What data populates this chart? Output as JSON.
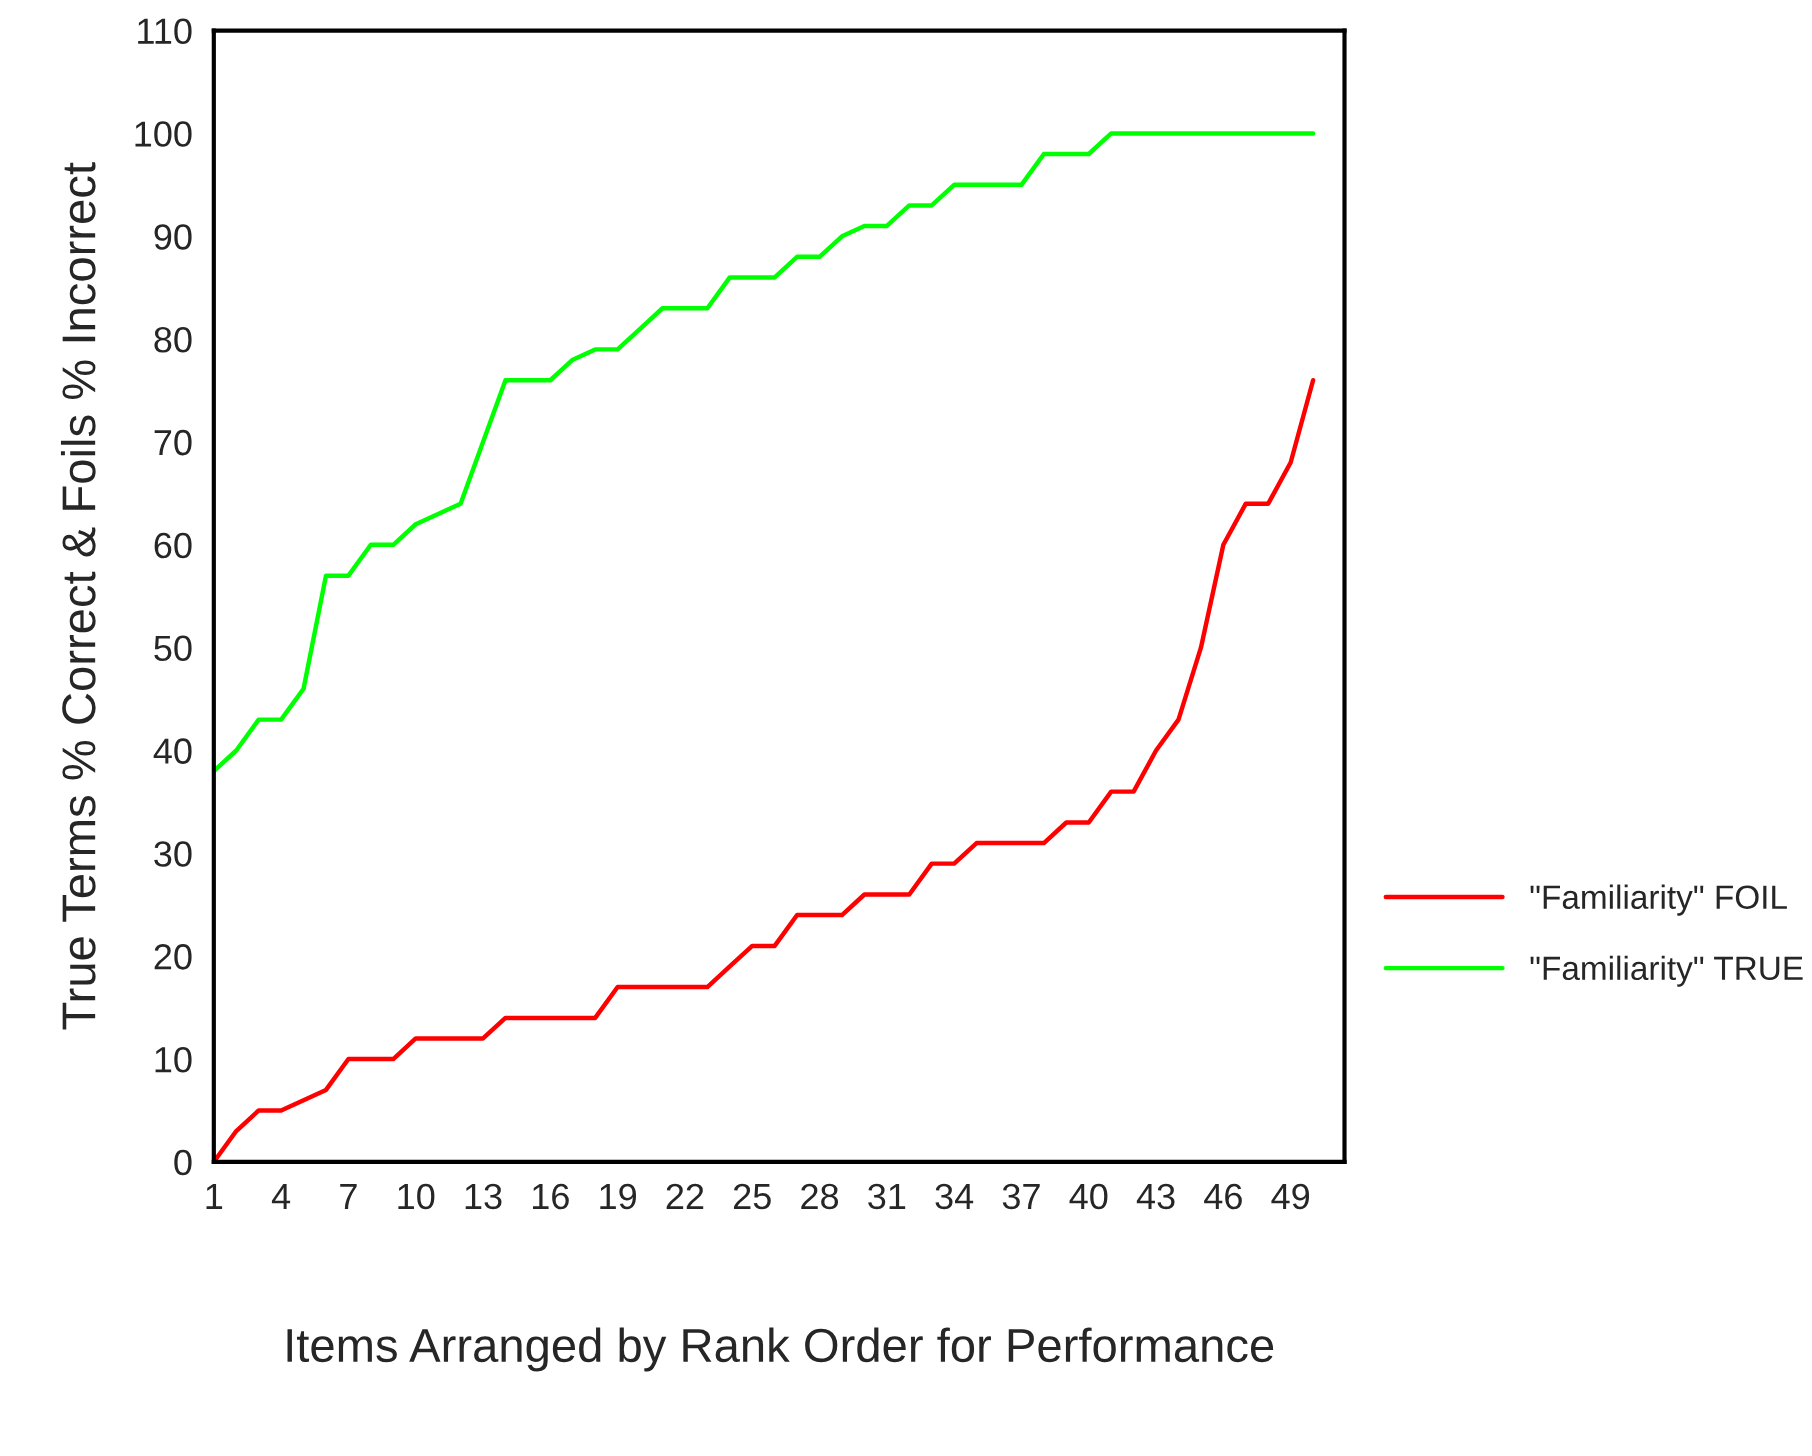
{
  "chart_data": {
    "type": "line",
    "xlabel": "Items Arranged by Rank Order for Performance",
    "ylabel": "True Terms % Correct & Foils % Incorrect",
    "x": [
      1,
      2,
      3,
      4,
      5,
      6,
      7,
      8,
      9,
      10,
      11,
      12,
      13,
      14,
      15,
      16,
      17,
      18,
      19,
      20,
      21,
      22,
      23,
      24,
      25,
      26,
      27,
      28,
      29,
      30,
      31,
      32,
      33,
      34,
      35,
      36,
      37,
      38,
      39,
      40,
      41,
      42,
      43,
      44,
      45,
      46,
      47,
      48,
      49,
      50
    ],
    "series": [
      {
        "name": "\"Familiarity\" FOIL",
        "color": "#ff0000",
        "values": [
          0,
          3,
          5,
          5,
          6,
          7,
          10,
          10,
          10,
          12,
          12,
          12,
          12,
          14,
          14,
          14,
          14,
          14,
          17,
          17,
          17,
          17,
          17,
          19,
          21,
          21,
          24,
          24,
          24,
          26,
          26,
          26,
          29,
          29,
          31,
          31,
          31,
          31,
          33,
          33,
          36,
          36,
          40,
          43,
          50,
          60,
          64,
          64,
          68,
          76
        ]
      },
      {
        "name": "\"Familiarity\" TRUE",
        "color": "#00ff00",
        "values": [
          38,
          40,
          43,
          43,
          46,
          57,
          57,
          60,
          60,
          62,
          63,
          64,
          70,
          76,
          76,
          76,
          78,
          79,
          79,
          81,
          83,
          83,
          83,
          86,
          86,
          86,
          88,
          88,
          90,
          91,
          91,
          93,
          93,
          95,
          95,
          95,
          95,
          98,
          98,
          98,
          100,
          100,
          100,
          100,
          100,
          100,
          100,
          100,
          100,
          100
        ]
      }
    ],
    "xlim": [
      1,
      51.4
    ],
    "xticks": [
      1,
      4,
      7,
      10,
      13,
      16,
      19,
      22,
      25,
      28,
      31,
      34,
      37,
      40,
      43,
      46,
      49
    ],
    "ylim": [
      0,
      110
    ],
    "yticks": [
      0,
      10,
      20,
      30,
      40,
      50,
      60,
      70,
      80,
      90,
      100,
      110
    ],
    "grid": false,
    "legend": "right",
    "marker": "none",
    "line_style": "solid"
  }
}
